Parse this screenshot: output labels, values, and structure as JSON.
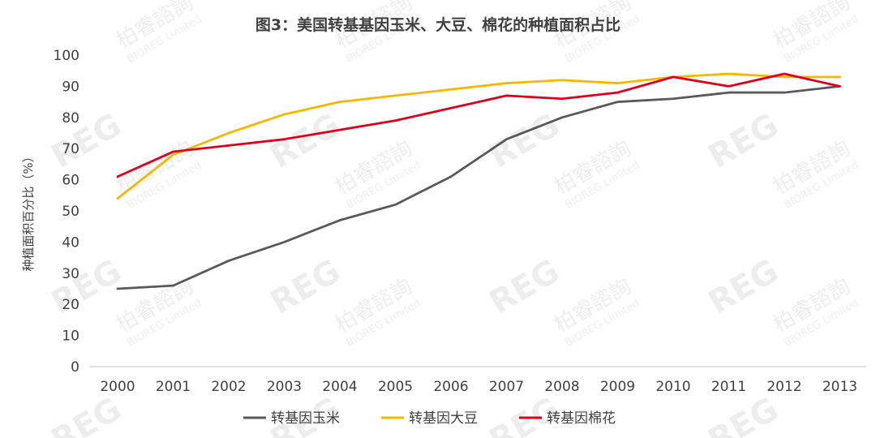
{
  "chart_data": {
    "type": "line",
    "title": "图3：美国转基基因玉米、大豆、棉花的种植面积占比",
    "ylabel": "种植面积百分比（%）",
    "xlabel": "",
    "categories": [
      "2000",
      "2001",
      "2002",
      "2003",
      "2004",
      "2005",
      "2006",
      "2007",
      "2008",
      "2009",
      "2010",
      "2011",
      "2012",
      "2013"
    ],
    "ylim": [
      0,
      100
    ],
    "yticks": [
      0,
      10,
      20,
      30,
      40,
      50,
      60,
      70,
      80,
      90,
      100
    ],
    "grid": false,
    "legend_position": "bottom",
    "series": [
      {
        "name": "转基因玉米",
        "color": "#595959",
        "values": [
          25,
          26,
          34,
          40,
          47,
          52,
          61,
          73,
          80,
          85,
          86,
          88,
          88,
          90
        ]
      },
      {
        "name": "转基因大豆",
        "color": "#F5B800",
        "values": [
          54,
          68,
          75,
          81,
          85,
          87,
          89,
          91,
          92,
          91,
          93,
          94,
          93,
          93
        ]
      },
      {
        "name": "转基因棉花",
        "color": "#E0001B",
        "values": [
          61,
          69,
          71,
          73,
          76,
          79,
          83,
          87,
          86,
          88,
          93,
          90,
          94,
          90
        ]
      }
    ]
  },
  "watermark": {
    "brand": "柏睿諮詢",
    "brand_en": "BIOREG Limited",
    "logo_letters": "REG"
  }
}
